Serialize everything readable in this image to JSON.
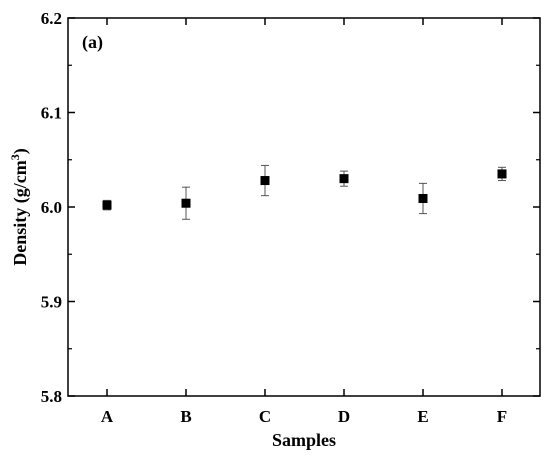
{
  "chart_data": {
    "type": "scatter",
    "panel_label": "(a)",
    "xlabel": "Samples",
    "ylabel_main": "Density (g/cm",
    "ylabel_sup": "3",
    "ylabel_close": ")",
    "categories": [
      "A",
      "B",
      "C",
      "D",
      "E",
      "F"
    ],
    "values": [
      6.002,
      6.004,
      6.028,
      6.03,
      6.009,
      6.035
    ],
    "errors": [
      0.005,
      0.017,
      0.016,
      0.008,
      0.016,
      0.007
    ],
    "ylim": [
      5.8,
      6.2
    ],
    "yticks": [
      "5.8",
      "5.9",
      "6.0",
      "6.1",
      "6.2"
    ],
    "ytick_values": [
      5.8,
      5.9,
      6.0,
      6.1,
      6.2
    ],
    "marker": "square",
    "marker_color": "#000000",
    "grid": false
  }
}
